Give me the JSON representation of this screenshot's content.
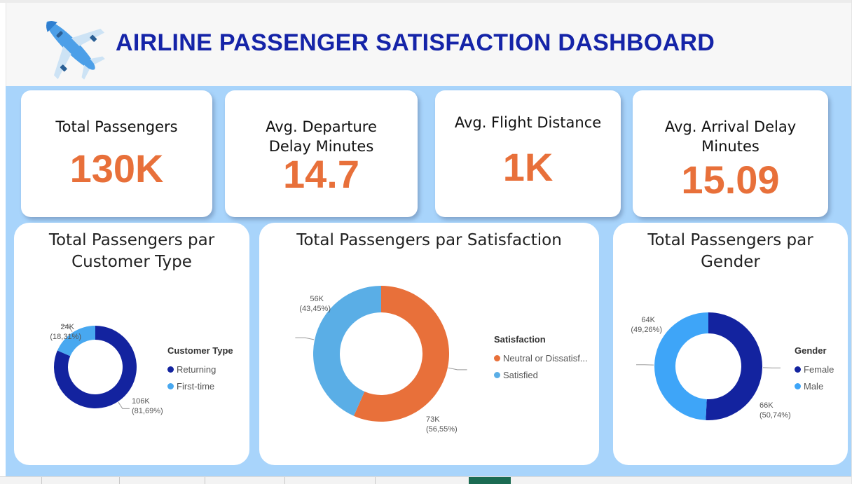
{
  "header": {
    "title": "AIRLINE PASSENGER SATISFACTION DASHBOARD",
    "logo_icon": "airplane-icon"
  },
  "kpis": [
    {
      "label": "Total Passengers",
      "value": "130K"
    },
    {
      "label": "Avg. Departure Delay Minutes",
      "value": "14.7"
    },
    {
      "label": "Avg. Flight Distance",
      "value": "1K"
    },
    {
      "label": "Avg. Arrival Delay Minutes",
      "value": "15.09"
    }
  ],
  "colors": {
    "title_blue": "#1524a8",
    "kpi_orange": "#e8703a",
    "canvas_blue": "#a8d4fb",
    "dark_navy": "#13239f",
    "light_blue": "#48a8f0",
    "orange": "#e8703a",
    "taskbar_active": "#1a6b52"
  },
  "chart_data": [
    {
      "type": "pie",
      "title": "Total Passengers par Customer Type",
      "legend_title": "Customer Type",
      "legend_position": "right",
      "categories": [
        "Returning",
        "First-time"
      ],
      "values": [
        106000,
        24000
      ],
      "percentages": [
        81.69,
        18.31
      ],
      "data_labels": [
        {
          "value": "106K",
          "percent": "(81,69%)"
        },
        {
          "value": "24K",
          "percent": "(18,31%)"
        }
      ],
      "colors": [
        "#13239f",
        "#48a8f0"
      ]
    },
    {
      "type": "pie",
      "title": "Total Passengers par Satisfaction",
      "legend_title": "Satisfaction",
      "legend_position": "right",
      "categories": [
        "Neutral or Dissatisf...",
        "Satisfied"
      ],
      "values": [
        73000,
        56000
      ],
      "percentages": [
        56.55,
        43.45
      ],
      "data_labels": [
        {
          "value": "73K",
          "percent": "(56,55%)"
        },
        {
          "value": "56K",
          "percent": "(43,45%)"
        }
      ],
      "colors": [
        "#e8703a",
        "#5aaee6"
      ]
    },
    {
      "type": "pie",
      "title": "Total Passengers par Gender",
      "legend_title": "Gender",
      "legend_position": "right",
      "categories": [
        "Female",
        "Male"
      ],
      "values": [
        66000,
        64000
      ],
      "percentages": [
        50.74,
        49.26
      ],
      "data_labels": [
        {
          "value": "66K",
          "percent": "(50,74%)"
        },
        {
          "value": "64K",
          "percent": "(49,26%)"
        }
      ],
      "colors": [
        "#13239f",
        "#3ea5f8"
      ]
    }
  ]
}
